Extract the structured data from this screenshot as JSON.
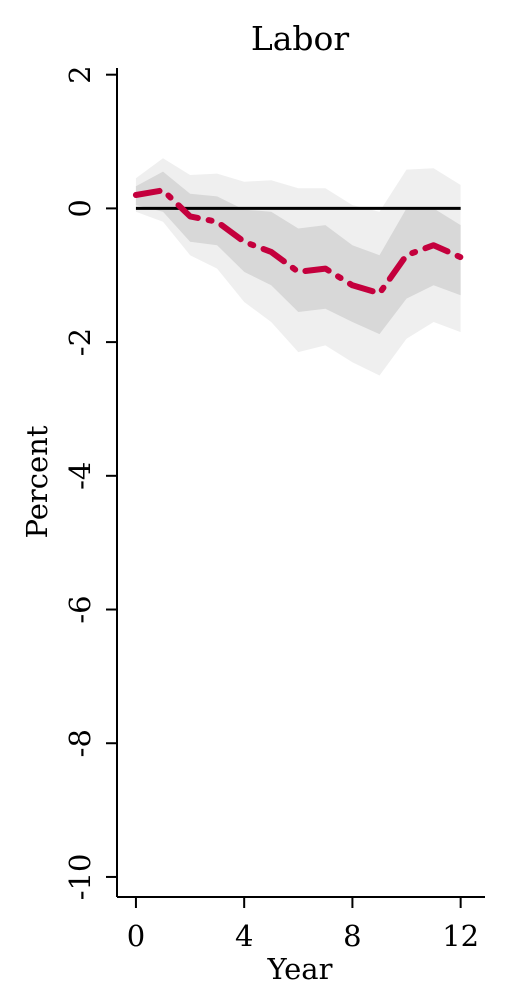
{
  "chart_data": {
    "type": "line",
    "title": "Labor",
    "xlabel": "Year",
    "ylabel": "Percent",
    "xlim": [
      -0.7,
      12.9
    ],
    "ylim": [
      -10.3,
      2.1
    ],
    "x_ticks": [
      0,
      4,
      8,
      12
    ],
    "y_ticks": [
      2,
      0,
      -2,
      -4,
      -6,
      -8,
      -10
    ],
    "x": [
      0,
      1,
      2,
      3,
      4,
      5,
      6,
      7,
      8,
      9,
      10,
      11,
      12
    ],
    "series": [
      {
        "values": [
          0.2,
          0.27,
          -0.12,
          -0.2,
          -0.5,
          -0.65,
          -0.95,
          -0.9,
          -1.15,
          -1.27,
          -0.7,
          -0.55,
          -0.73
        ]
      }
    ],
    "bands": {
      "inner_upper": [
        0.33,
        0.55,
        0.22,
        0.18,
        -0.02,
        -0.05,
        -0.3,
        -0.25,
        -0.55,
        -0.7,
        0.0,
        0.0,
        -0.25
      ],
      "inner_lower": [
        0.05,
        -0.05,
        -0.5,
        -0.55,
        -0.95,
        -1.15,
        -1.55,
        -1.5,
        -1.7,
        -1.88,
        -1.35,
        -1.15,
        -1.3
      ],
      "outer_upper": [
        0.45,
        0.75,
        0.5,
        0.52,
        0.4,
        0.42,
        0.3,
        0.3,
        0.05,
        -0.05,
        0.58,
        0.6,
        0.35
      ],
      "outer_lower": [
        -0.05,
        -0.2,
        -0.7,
        -0.9,
        -1.4,
        -1.7,
        -2.15,
        -2.05,
        -2.3,
        -2.5,
        -1.95,
        -1.7,
        -1.85
      ]
    },
    "zero_line": 0,
    "grid": false,
    "colors": {
      "line": "#c4003d",
      "inner_band": "#d8d8d8",
      "outer_band": "#efefef",
      "zero_line": "#000000",
      "axis": "#000000"
    }
  }
}
